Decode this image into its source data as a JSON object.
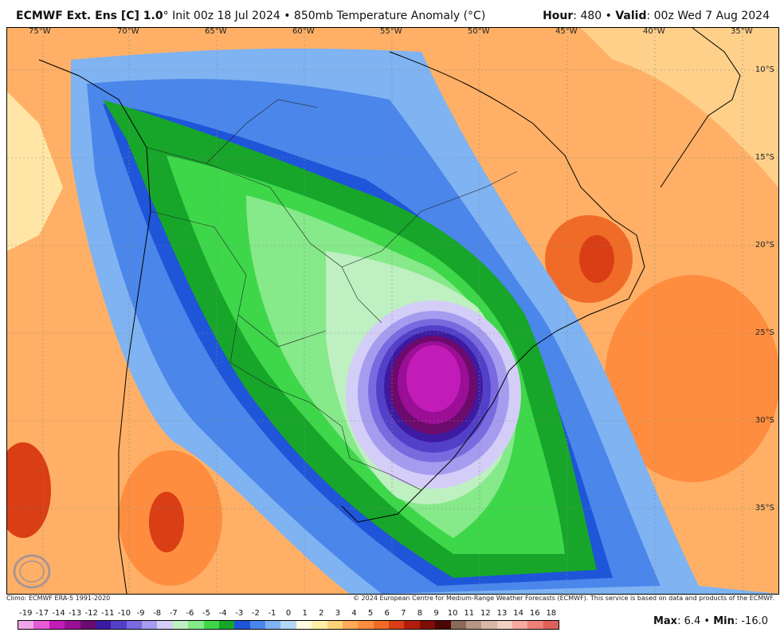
{
  "header": {
    "model": "ECMWF Ext. Ens [C] 1.0",
    "degree": "°",
    "init": " Init 00z 18 Jul 2024 • 850mb Temperature Anomaly (°C)",
    "hour_label": "Hour",
    "hour_value": ": 480 • ",
    "valid_label": "Valid",
    "valid_value": ": 00z Wed 7 Aug 2024"
  },
  "map": {
    "lon_labels": [
      "75°W",
      "70°W",
      "65°W",
      "60°W",
      "55°W",
      "50°W",
      "45°W",
      "40°W",
      "35°W"
    ],
    "lat_labels": [
      "10°S",
      "15°S",
      "20°S",
      "25°S",
      "30°S",
      "35°S"
    ]
  },
  "credits": {
    "left": "Climo: ECMWF ERA-5 1991-2020",
    "right": "© 2024 European Centre for Medium-Range Weather Forecasts (ECMWF). This service is based on data and products of the ECMWF."
  },
  "logo": {
    "text": "WEATHERBELL"
  },
  "colorbar": {
    "labels": [
      "-19",
      "-17",
      "-14",
      "-13",
      "-12",
      "-11",
      "-10",
      "-9",
      "-8",
      "-7",
      "-6",
      "-5",
      "-4",
      "-3",
      "-2",
      "-1",
      "0",
      "1",
      "2",
      "3",
      "4",
      "5",
      "6",
      "7",
      "8",
      "9",
      "10",
      "11",
      "12",
      "13",
      "14",
      "16",
      "18"
    ],
    "colors": [
      "#f2a6e8",
      "#e65cd6",
      "#c21cb8",
      "#9a0f95",
      "#6d0a6e",
      "#3d1aa1",
      "#5340c8",
      "#7a6ae0",
      "#a59cef",
      "#d3cdf8",
      "#bff0c1",
      "#86e98a",
      "#3ed74a",
      "#17a62a",
      "#1f55d8",
      "#4b86ea",
      "#7fb3f2",
      "#b3d7f7",
      "#fffbe0",
      "#fff0a6",
      "#ffd27a",
      "#ffaa58",
      "#ff8d3f",
      "#f06b28",
      "#d93e14",
      "#b31e0c",
      "#7d0f07",
      "#4a0704",
      "#8a6a58",
      "#b89684",
      "#d9b7a6",
      "#f2cfc3",
      "#f5a9a0",
      "#ed8179",
      "#e0615a"
    ]
  },
  "stats": {
    "max_label": "Max",
    "max_value": ": 6.4 • ",
    "min_label": "Min",
    "min_value": ": -16.0"
  },
  "anomaly_extremes": {
    "max": 6.4,
    "min": -16.0
  }
}
